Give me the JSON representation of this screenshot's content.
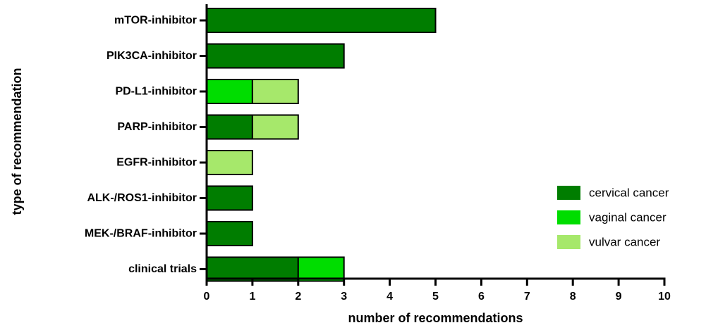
{
  "chart_data": {
    "type": "bar",
    "orientation": "horizontal",
    "stacked": true,
    "title": "",
    "xlabel": "number of recommendations",
    "ylabel": "type of recommendation",
    "xlim": [
      0,
      10
    ],
    "xticks": [
      0,
      1,
      2,
      3,
      4,
      5,
      6,
      7,
      8,
      9,
      10
    ],
    "categories": [
      "mTOR-inhibitor",
      "PIK3CA-inhibitor",
      "PD-L1-inhibitor",
      "PARP-inhibitor",
      "EGFR-inhibitor",
      "ALK-/ROS1-inhibitor",
      "MEK-/BRAF-inhibitor",
      "clinical trials"
    ],
    "series": [
      {
        "name": "cervical cancer",
        "color": "#007D00",
        "values": [
          5,
          3,
          0,
          1,
          0,
          1,
          1,
          2
        ]
      },
      {
        "name": "vaginal cancer",
        "color": "#00DD00",
        "values": [
          0,
          0,
          1,
          0,
          0,
          0,
          0,
          1
        ]
      },
      {
        "name": "vulvar cancer",
        "color": "#A6E86B",
        "values": [
          0,
          0,
          1,
          1,
          1,
          0,
          0,
          0
        ]
      }
    ],
    "legend_position": "right",
    "grid": false
  }
}
